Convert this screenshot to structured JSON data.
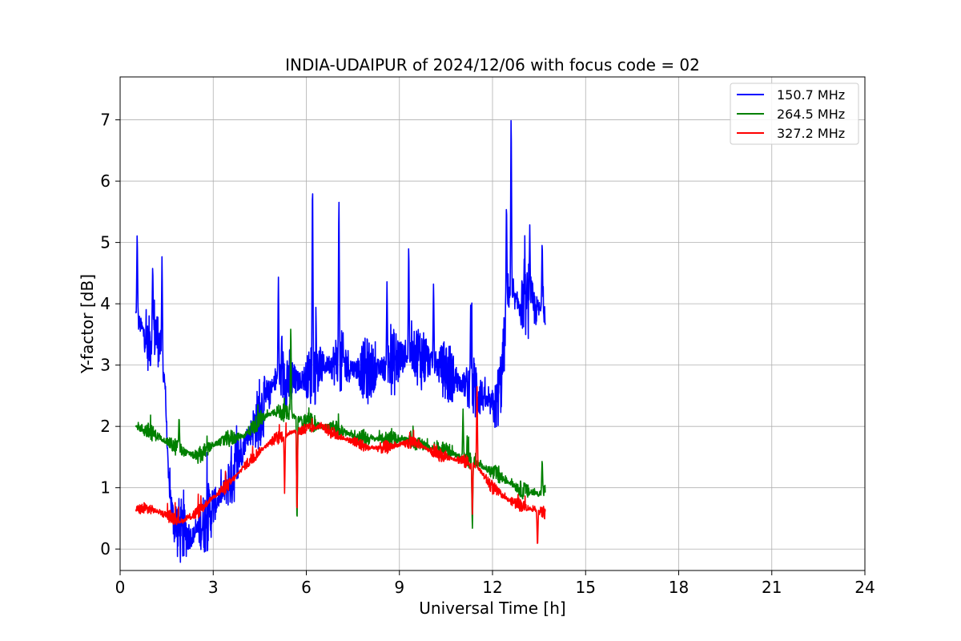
{
  "chart_data": {
    "type": "line",
    "title": "INDIA-UDAIPUR of 2024/12/06 with focus code = 02",
    "xlabel": "Universal Time [h]",
    "ylabel": "Y-factor [dB]",
    "xlim": [
      0,
      24
    ],
    "ylim": [
      -0.35,
      7.7
    ],
    "xticks": [
      0,
      3,
      6,
      9,
      12,
      15,
      18,
      21,
      24
    ],
    "yticks": [
      0,
      1,
      2,
      3,
      4,
      5,
      6,
      7
    ],
    "grid": true,
    "legend_position": "top-right",
    "series": [
      {
        "name": "150.7 MHz",
        "color": "#0000ff",
        "noise": 0.35,
        "points": [
          [
            0.5,
            3.8
          ],
          [
            0.7,
            3.6
          ],
          [
            0.9,
            3.3
          ],
          [
            1.1,
            3.6
          ],
          [
            1.3,
            3.3
          ],
          [
            1.45,
            2.7
          ],
          [
            1.55,
            1.2
          ],
          [
            1.7,
            0.5
          ],
          [
            1.9,
            0.3
          ],
          [
            2.1,
            0.25
          ],
          [
            2.3,
            0.2
          ],
          [
            2.5,
            0.3
          ],
          [
            2.8,
            0.5
          ],
          [
            3.0,
            0.7
          ],
          [
            3.3,
            0.9
          ],
          [
            3.6,
            1.2
          ],
          [
            3.9,
            1.6
          ],
          [
            4.2,
            1.9
          ],
          [
            4.5,
            2.2
          ],
          [
            4.8,
            2.5
          ],
          [
            5.0,
            2.75
          ],
          [
            5.3,
            2.85
          ],
          [
            5.6,
            2.7
          ],
          [
            6.0,
            2.8
          ],
          [
            6.3,
            2.9
          ],
          [
            6.6,
            3.0
          ],
          [
            7.0,
            3.05
          ],
          [
            7.5,
            2.95
          ],
          [
            8.0,
            2.9
          ],
          [
            8.5,
            2.95
          ],
          [
            9.0,
            3.1
          ],
          [
            9.5,
            3.2
          ],
          [
            10.0,
            3.05
          ],
          [
            10.5,
            2.9
          ],
          [
            11.0,
            2.7
          ],
          [
            11.5,
            2.6
          ],
          [
            11.8,
            2.4
          ],
          [
            12.1,
            2.3
          ],
          [
            12.3,
            2.8
          ],
          [
            12.5,
            4.2
          ],
          [
            12.8,
            4.0
          ],
          [
            13.1,
            4.0
          ],
          [
            13.4,
            3.9
          ],
          [
            13.7,
            3.9
          ]
        ],
        "spikes": [
          [
            0.55,
            5.25
          ],
          [
            1.05,
            4.7
          ],
          [
            1.35,
            4.85
          ],
          [
            5.1,
            4.5
          ],
          [
            6.2,
            6.28
          ],
          [
            7.05,
            5.93
          ],
          [
            8.6,
            4.4
          ],
          [
            9.3,
            5.1
          ],
          [
            10.1,
            4.4
          ],
          [
            11.3,
            4.2
          ],
          [
            12.45,
            5.8
          ],
          [
            12.6,
            7.32
          ],
          [
            13.2,
            5.3
          ],
          [
            13.6,
            5.1
          ]
        ]
      },
      {
        "name": "264.5 MHz",
        "color": "#008000",
        "noise": 0.09,
        "points": [
          [
            0.5,
            2.0
          ],
          [
            1.0,
            1.9
          ],
          [
            1.5,
            1.75
          ],
          [
            2.0,
            1.6
          ],
          [
            2.5,
            1.5
          ],
          [
            3.0,
            1.7
          ],
          [
            3.5,
            1.8
          ],
          [
            4.0,
            1.85
          ],
          [
            4.5,
            2.1
          ],
          [
            5.0,
            2.25
          ],
          [
            5.5,
            2.2
          ],
          [
            6.0,
            2.05
          ],
          [
            6.5,
            2.0
          ],
          [
            7.0,
            1.95
          ],
          [
            7.5,
            1.85
          ],
          [
            8.0,
            1.8
          ],
          [
            8.5,
            1.8
          ],
          [
            9.0,
            1.8
          ],
          [
            9.5,
            1.75
          ],
          [
            10.0,
            1.65
          ],
          [
            10.5,
            1.6
          ],
          [
            11.0,
            1.5
          ],
          [
            11.5,
            1.4
          ],
          [
            12.0,
            1.25
          ],
          [
            12.5,
            1.1
          ],
          [
            13.0,
            0.95
          ],
          [
            13.5,
            0.9
          ],
          [
            13.7,
            0.95
          ]
        ],
        "spikes": [
          [
            1.9,
            2.2
          ],
          [
            5.5,
            3.73
          ],
          [
            5.7,
            0.25
          ],
          [
            11.35,
            0.25
          ],
          [
            11.05,
            2.3
          ],
          [
            13.6,
            1.5
          ]
        ]
      },
      {
        "name": "327.2 MHz",
        "color": "#ff0000",
        "noise": 0.07,
        "points": [
          [
            0.5,
            0.65
          ],
          [
            1.0,
            0.65
          ],
          [
            1.5,
            0.55
          ],
          [
            2.0,
            0.45
          ],
          [
            2.5,
            0.6
          ],
          [
            3.0,
            0.85
          ],
          [
            3.5,
            1.05
          ],
          [
            4.0,
            1.35
          ],
          [
            4.5,
            1.6
          ],
          [
            5.0,
            1.8
          ],
          [
            5.5,
            1.9
          ],
          [
            6.0,
            1.95
          ],
          [
            6.5,
            2.0
          ],
          [
            7.0,
            1.85
          ],
          [
            7.5,
            1.75
          ],
          [
            8.0,
            1.65
          ],
          [
            8.5,
            1.65
          ],
          [
            9.0,
            1.7
          ],
          [
            9.5,
            1.75
          ],
          [
            10.0,
            1.6
          ],
          [
            10.5,
            1.5
          ],
          [
            11.0,
            1.45
          ],
          [
            11.5,
            1.35
          ],
          [
            12.0,
            1.0
          ],
          [
            12.5,
            0.8
          ],
          [
            13.0,
            0.7
          ],
          [
            13.5,
            0.6
          ],
          [
            13.7,
            0.6
          ]
        ],
        "spikes": [
          [
            5.3,
            0.88
          ],
          [
            5.7,
            0.45
          ],
          [
            11.35,
            0.5
          ],
          [
            11.5,
            2.8
          ],
          [
            13.45,
            0.0
          ]
        ]
      }
    ]
  }
}
